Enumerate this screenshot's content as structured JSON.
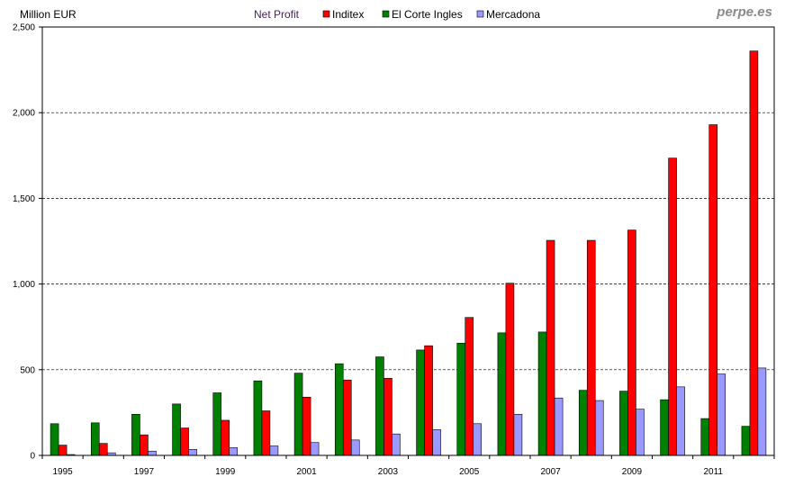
{
  "header": {
    "unit_label": "Million EUR",
    "title": "Net Profit",
    "brand": "perpe.es"
  },
  "colors": {
    "Inditex": "#ff0000",
    "El Corte Ingles": "#008000",
    "Mercadona": "#9999ff",
    "title": "#4b2060",
    "grid": "#000000"
  },
  "chart_data": {
    "type": "bar",
    "title": "Net Profit",
    "ylabel": "Million EUR",
    "xlabel": "",
    "ylim": [
      0,
      2500
    ],
    "y_ticks": [
      0,
      500,
      1000,
      1500,
      2000,
      2500
    ],
    "y_tick_labels": [
      "0",
      "500",
      "1,000",
      "1,500",
      "2,000",
      "2,500"
    ],
    "grid": "horizontal dashed",
    "legend_position": "top",
    "legend": [
      "Inditex",
      "El Corte Ingles",
      "Mercadona"
    ],
    "categories": [
      "1995",
      "1996",
      "1997",
      "1998",
      "1999",
      "2000",
      "2001",
      "2002",
      "2003",
      "2004",
      "2005",
      "2006",
      "2007",
      "2008",
      "2009",
      "2010",
      "2011",
      "2012"
    ],
    "x_tick_labels": [
      "1995",
      "",
      "1997",
      "",
      "1999",
      "",
      "2001",
      "",
      "2003",
      "",
      "2005",
      "",
      "2007",
      "",
      "2009",
      "",
      "2011",
      ""
    ],
    "series": [
      {
        "name": "El Corte Ingles",
        "values": [
          185,
          190,
          240,
          300,
          365,
          435,
          480,
          535,
          575,
          615,
          655,
          715,
          720,
          380,
          375,
          325,
          215,
          170
        ]
      },
      {
        "name": "Inditex",
        "values": [
          60,
          70,
          120,
          160,
          205,
          260,
          340,
          440,
          450,
          640,
          805,
          1005,
          1255,
          1255,
          1315,
          1735,
          1930,
          2360
        ]
      },
      {
        "name": "Mercadona",
        "values": [
          5,
          15,
          25,
          35,
          45,
          55,
          75,
          90,
          125,
          150,
          185,
          240,
          335,
          320,
          270,
          400,
          475,
          510
        ]
      }
    ]
  }
}
